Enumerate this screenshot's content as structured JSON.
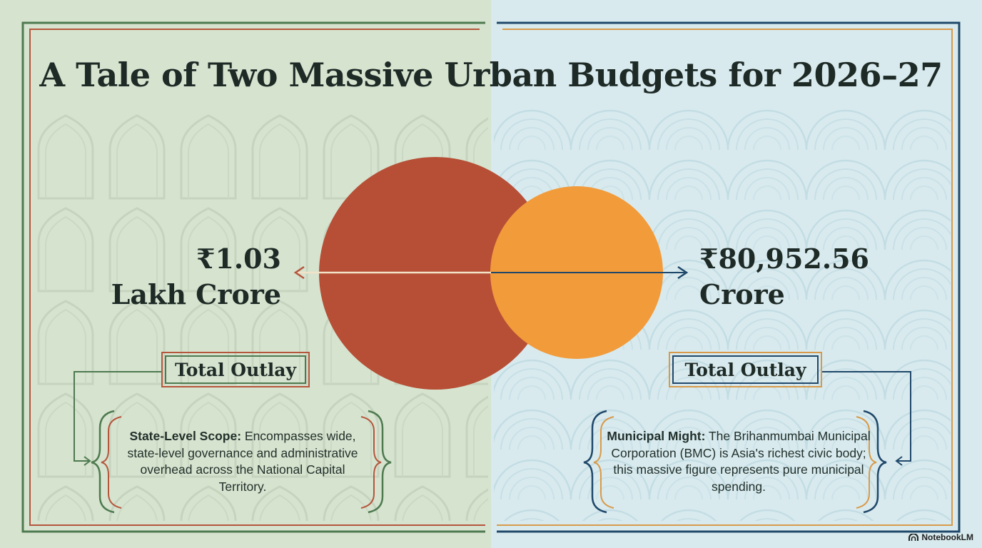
{
  "title": "A Tale of Two Massive Urban Budgets for 2026–27",
  "left": {
    "amount_line1": "₹1.03",
    "amount_line2": "Lakh Crore",
    "outlay_label": "Total Outlay",
    "desc_bold": "State-Level Scope:",
    "desc_text": " Encompasses wide, state-level governance and administrative overhead across the National Capital Territory.",
    "circle_color": "#b64f36",
    "accent_color": "#4e7a4f"
  },
  "right": {
    "amount_line1": "₹80,952.56",
    "amount_line2": "Crore",
    "outlay_label": "Total Outlay",
    "desc_bold": "Municipal Might:",
    "desc_text": " The Brihanmumbai Municipal Corporation (BMC) is Asia's richest civic body; this massive figure represents pure municipal spending.",
    "circle_color": "#f29b3b",
    "accent_color": "#20486a"
  },
  "brand": {
    "label": "NotebookLM",
    "icon": "notebooklm-logo-icon"
  }
}
